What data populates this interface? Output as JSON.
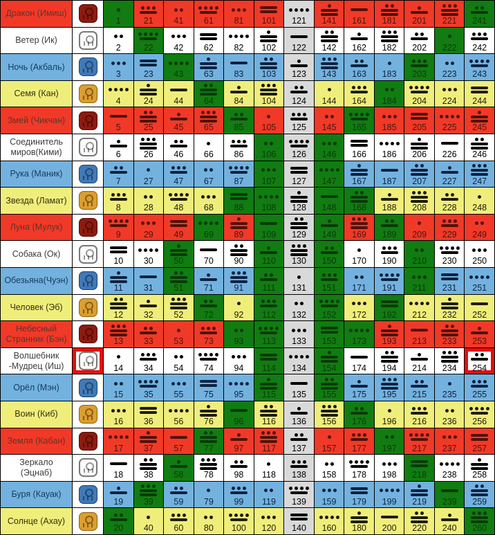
{
  "chart_data": {
    "type": "table",
    "description_columns": 13,
    "kin_range": [
      1,
      260
    ],
    "rows": [
      {
        "name": "Дракон (Имиш)",
        "seal": "dragon-seal",
        "color": "red",
        "kins": [
          1,
          21,
          41,
          61,
          81,
          101,
          121,
          141,
          161,
          181,
          201,
          221,
          241
        ]
      },
      {
        "name": "Ветер (Ик)",
        "seal": "wind-seal",
        "color": "white",
        "kins": [
          2,
          22,
          42,
          62,
          82,
          102,
          122,
          142,
          162,
          182,
          202,
          222,
          242
        ]
      },
      {
        "name": "Ночь (Акбаль)",
        "seal": "night-seal",
        "color": "blue",
        "kins": [
          3,
          23,
          43,
          63,
          83,
          103,
          123,
          143,
          163,
          183,
          203,
          223,
          243
        ]
      },
      {
        "name": "Семя (Кан)",
        "seal": "seed-seal",
        "color": "yellow",
        "kins": [
          4,
          24,
          44,
          64,
          84,
          104,
          124,
          144,
          164,
          184,
          204,
          224,
          244
        ]
      },
      {
        "name": "Змей (Чикчан)",
        "seal": "serpent-seal",
        "color": "red",
        "kins": [
          5,
          25,
          45,
          65,
          85,
          105,
          125,
          145,
          165,
          185,
          205,
          225,
          245
        ]
      },
      {
        "name": "Соединитель миров(Кими)",
        "seal": "worldbridger-seal",
        "color": "white",
        "kins": [
          6,
          26,
          46,
          66,
          86,
          106,
          126,
          146,
          166,
          186,
          206,
          226,
          246
        ]
      },
      {
        "name": "Рука (Маник)",
        "seal": "hand-seal",
        "color": "blue",
        "kins": [
          7,
          27,
          47,
          67,
          87,
          107,
          127,
          147,
          167,
          187,
          207,
          227,
          247
        ]
      },
      {
        "name": "Звезда (Ламат)",
        "seal": "star-seal",
        "color": "yellow",
        "kins": [
          8,
          28,
          48,
          68,
          88,
          108,
          128,
          148,
          168,
          188,
          208,
          228,
          248
        ]
      },
      {
        "name": "Луна (Мулук)",
        "seal": "moon-seal",
        "color": "red",
        "kins": [
          9,
          29,
          49,
          69,
          89,
          109,
          129,
          149,
          169,
          189,
          209,
          229,
          249
        ]
      },
      {
        "name": "Собака (Ок)",
        "seal": "dog-seal",
        "color": "white",
        "kins": [
          10,
          30,
          50,
          70,
          90,
          110,
          130,
          150,
          170,
          190,
          210,
          230,
          250
        ]
      },
      {
        "name": "Обезьяна(Чуэн)",
        "seal": "monkey-seal",
        "color": "blue",
        "kins": [
          11,
          31,
          51,
          71,
          91,
          111,
          131,
          151,
          171,
          191,
          211,
          231,
          251
        ]
      },
      {
        "name": "Человек (Эб)",
        "seal": "human-seal",
        "color": "yellow",
        "kins": [
          12,
          32,
          52,
          72,
          92,
          112,
          132,
          152,
          172,
          192,
          212,
          232,
          252
        ]
      },
      {
        "name": "Небесный Странник (Бэн)",
        "seal": "skywalker-seal",
        "color": "red",
        "kins": [
          13,
          33,
          53,
          73,
          93,
          113,
          133,
          153,
          173,
          193,
          213,
          233,
          253
        ]
      },
      {
        "name": "Волшебник -Мудрец (Иш)",
        "seal": "wizard-seal",
        "color": "white",
        "kins": [
          14,
          34,
          54,
          74,
          94,
          114,
          134,
          154,
          174,
          194,
          214,
          234,
          254
        ]
      },
      {
        "name": "Орёл (Мэн)",
        "seal": "eagle-seal",
        "color": "blue",
        "kins": [
          15,
          35,
          55,
          75,
          95,
          115,
          135,
          155,
          175,
          195,
          215,
          235,
          255
        ]
      },
      {
        "name": "Воин (Киб)",
        "seal": "warrior-seal",
        "color": "yellow",
        "kins": [
          16,
          36,
          56,
          76,
          96,
          116,
          136,
          156,
          176,
          196,
          216,
          236,
          256
        ]
      },
      {
        "name": "Земля (Кабан)",
        "seal": "earth-seal",
        "color": "red",
        "kins": [
          17,
          37,
          57,
          77,
          97,
          117,
          137,
          157,
          177,
          197,
          217,
          237,
          257
        ]
      },
      {
        "name": "Зеркало (Эцнаб)",
        "seal": "mirror-seal",
        "color": "white",
        "kins": [
          18,
          38,
          58,
          78,
          98,
          118,
          138,
          158,
          178,
          198,
          218,
          238,
          258
        ]
      },
      {
        "name": "Буря (Кауак)",
        "seal": "storm-seal",
        "color": "blue",
        "kins": [
          19,
          39,
          59,
          79,
          99,
          119,
          139,
          159,
          179,
          199,
          219,
          239,
          259
        ]
      },
      {
        "name": "Солнце (Ахау)",
        "seal": "sun-seal",
        "color": "yellow",
        "kins": [
          20,
          40,
          60,
          80,
          100,
          120,
          140,
          160,
          180,
          200,
          220,
          240,
          260
        ]
      }
    ],
    "green_portal_kins": [
      1,
      20,
      22,
      39,
      43,
      50,
      51,
      58,
      64,
      69,
      72,
      77,
      85,
      88,
      93,
      96,
      106,
      107,
      108,
      109,
      110,
      111,
      112,
      113,
      114,
      115,
      146,
      147,
      148,
      149,
      150,
      151,
      152,
      153,
      154,
      155,
      165,
      168,
      173,
      176,
      184,
      189,
      192,
      197,
      203,
      210,
      211,
      218,
      222,
      239,
      241,
      260
    ],
    "gray_column_kins": [
      121,
      122,
      123,
      124,
      125,
      126,
      127,
      128,
      129,
      130,
      131,
      132,
      133,
      134,
      135,
      136,
      137,
      138,
      139,
      140
    ],
    "highlight": {
      "kin": 254,
      "seal_row": 14
    }
  },
  "colors": {
    "cells": {
      "red": "#f13928",
      "white": "#ffffff",
      "blue": "#73b2df",
      "yellow": "#f0ee7b",
      "green": "#117c11",
      "gray": "#d9d9d9"
    },
    "seals": {
      "red": "#8e1a0e",
      "white": "#fbfbfb",
      "blue": "#3f79b7",
      "yellow": "#dc9e2d"
    },
    "highlight": "#e60d0d"
  }
}
